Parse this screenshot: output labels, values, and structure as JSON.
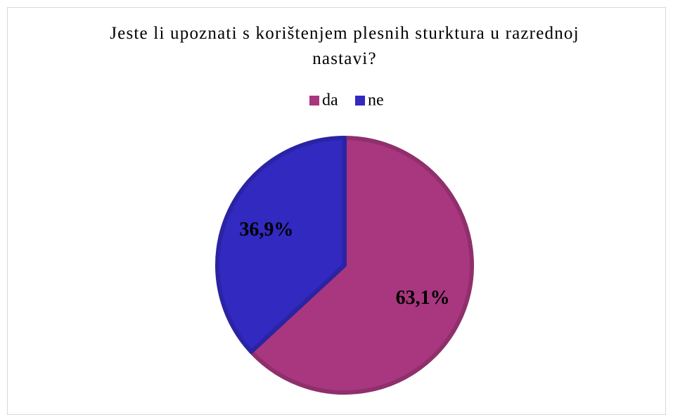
{
  "chart_data": {
    "type": "pie",
    "title": "Jeste li upoznati s korištenjem plesnih sturktura u razrednoj nastavi?",
    "categories": [
      "da",
      "ne"
    ],
    "values": [
      63.1,
      36.9
    ],
    "value_labels": [
      "63,1%",
      "36,9%"
    ],
    "colors": [
      "#a8377f",
      "#3129c0"
    ],
    "legend": "top"
  }
}
